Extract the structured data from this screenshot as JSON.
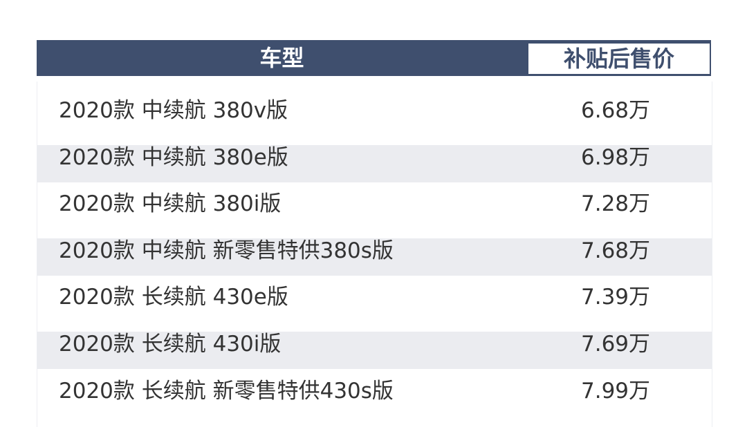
{
  "header": {
    "model": "车型",
    "price": "补贴后售价"
  },
  "rows": [
    {
      "model": "2020款 中续航 380v版",
      "price": "6.68万"
    },
    {
      "model": "2020款 中续航 380e版",
      "price": "6.98万"
    },
    {
      "model": "2020款 中续航 380i版",
      "price": "7.28万"
    },
    {
      "model": "2020款 中续航 新零售特供380s版",
      "price": "7.68万"
    },
    {
      "model": "2020款 长续航 430e版",
      "price": "7.39万"
    },
    {
      "model": "2020款 长续航 430i版",
      "price": "7.69万"
    },
    {
      "model": "2020款 长续航 新零售特供430s版",
      "price": "7.99万"
    }
  ],
  "colors": {
    "header": "#3f4f6e",
    "stripe": "#ebecf0",
    "text": "#333333"
  }
}
